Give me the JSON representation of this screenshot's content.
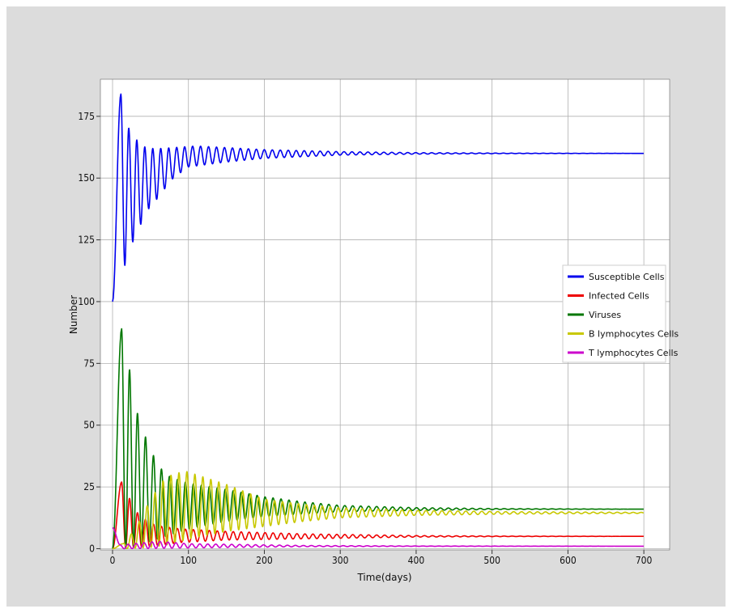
{
  "chart_data": {
    "type": "line",
    "title": "",
    "xlabel": "Time(days)",
    "ylabel": "Number",
    "xlim": [
      -16,
      734
    ],
    "ylim": [
      -0.5,
      190
    ],
    "xticks": [
      0,
      100,
      200,
      300,
      400,
      500,
      600,
      700
    ],
    "yticks": [
      0,
      25,
      50,
      75,
      100,
      125,
      150,
      175
    ],
    "grid": true,
    "legend_position": "center-right",
    "series": [
      {
        "name": "Susceptible Cells",
        "color": "#0000ee",
        "start": 100,
        "start_x": 0,
        "equilibrium": 160,
        "period_days": 10.5,
        "peaks": [
          [
            11,
            184
          ],
          [
            22,
            169.5
          ],
          [
            33,
            165
          ],
          [
            43,
            162.5
          ],
          [
            53,
            162
          ],
          [
            65,
            162
          ],
          [
            110,
            163
          ],
          [
            200,
            161.5
          ],
          [
            300,
            160.7
          ],
          [
            400,
            160.3
          ],
          [
            520,
            160.1
          ],
          [
            700,
            160
          ]
        ],
        "troughs": [
          [
            15,
            113.5
          ],
          [
            25,
            123
          ],
          [
            36,
            130.5
          ],
          [
            46,
            137
          ],
          [
            56,
            140.5
          ],
          [
            67,
            145
          ],
          [
            80,
            150
          ],
          [
            100,
            154.5
          ],
          [
            150,
            156.5
          ],
          [
            200,
            158
          ],
          [
            300,
            159.3
          ],
          [
            400,
            159.7
          ],
          [
            520,
            159.9
          ],
          [
            700,
            160
          ]
        ]
      },
      {
        "name": "Infected Cells",
        "color": "#ee0000",
        "start": 0,
        "start_x": 0,
        "equilibrium": 5,
        "period_days": 10.5,
        "peaks": [
          [
            12,
            27
          ],
          [
            23,
            20
          ],
          [
            33,
            14.5
          ],
          [
            43,
            12
          ],
          [
            53,
            10
          ],
          [
            65,
            9
          ],
          [
            90,
            8
          ],
          [
            150,
            7
          ],
          [
            250,
            6
          ],
          [
            400,
            5.3
          ],
          [
            520,
            5.1
          ],
          [
            700,
            5
          ]
        ],
        "troughs": [
          [
            16,
            0.3
          ],
          [
            50,
            1
          ],
          [
            90,
            2.5
          ],
          [
            150,
            3.5
          ],
          [
            250,
            4
          ],
          [
            400,
            4.7
          ],
          [
            520,
            4.9
          ],
          [
            700,
            5
          ]
        ]
      },
      {
        "name": "Viruses",
        "color": "#007700",
        "start": 0,
        "start_x": 0,
        "equilibrium": 16,
        "period_days": 10.5,
        "peaks": [
          [
            12,
            89
          ],
          [
            24,
            70
          ],
          [
            34,
            53
          ],
          [
            45,
            44
          ],
          [
            55,
            37
          ],
          [
            65,
            32
          ],
          [
            76,
            29
          ],
          [
            100,
            26.5
          ],
          [
            150,
            24
          ],
          [
            200,
            21
          ],
          [
            250,
            19
          ],
          [
            300,
            17.5
          ],
          [
            400,
            16.6
          ],
          [
            520,
            16.2
          ],
          [
            700,
            16
          ]
        ],
        "troughs": [
          [
            15,
            0
          ],
          [
            27,
            1
          ],
          [
            37,
            2
          ],
          [
            50,
            3
          ],
          [
            70,
            5
          ],
          [
            100,
            8
          ],
          [
            150,
            11
          ],
          [
            200,
            13
          ],
          [
            300,
            15
          ],
          [
            400,
            15.5
          ],
          [
            520,
            15.9
          ],
          [
            700,
            16
          ]
        ]
      },
      {
        "name": "B lymphocytes Cells",
        "color": "#c8c800",
        "start": 0,
        "start_x": 0,
        "equilibrium": 14.5,
        "period_days": 10.5,
        "peaks": [
          [
            14,
            2
          ],
          [
            30,
            8
          ],
          [
            50,
            20
          ],
          [
            70,
            29
          ],
          [
            95,
            31.5
          ],
          [
            120,
            29
          ],
          [
            150,
            26
          ],
          [
            200,
            20
          ],
          [
            250,
            18
          ],
          [
            300,
            16.5
          ],
          [
            400,
            15.5
          ],
          [
            520,
            15
          ],
          [
            700,
            14.7
          ]
        ],
        "troughs": [
          [
            14,
            0
          ],
          [
            50,
            0.5
          ],
          [
            80,
            2
          ],
          [
            100,
            4
          ],
          [
            150,
            7
          ],
          [
            200,
            9
          ],
          [
            250,
            11
          ],
          [
            300,
            12.5
          ],
          [
            400,
            13.5
          ],
          [
            520,
            14
          ],
          [
            700,
            14.3
          ]
        ]
      },
      {
        "name": "T lymphocytes Cells",
        "color": "#cc00cc",
        "start": 8.5,
        "start_x": 0,
        "equilibrium": 1,
        "period_days": 10.5,
        "peaks": [
          [
            10,
            1.5
          ],
          [
            60,
            3
          ],
          [
            100,
            2
          ],
          [
            150,
            1.8
          ],
          [
            250,
            1.3
          ],
          [
            400,
            1.1
          ],
          [
            700,
            1
          ]
        ],
        "troughs": [
          [
            5,
            0
          ],
          [
            50,
            0.1
          ],
          [
            100,
            0.3
          ],
          [
            150,
            0.5
          ],
          [
            250,
            0.8
          ],
          [
            400,
            0.95
          ],
          [
            700,
            1
          ]
        ]
      }
    ]
  }
}
